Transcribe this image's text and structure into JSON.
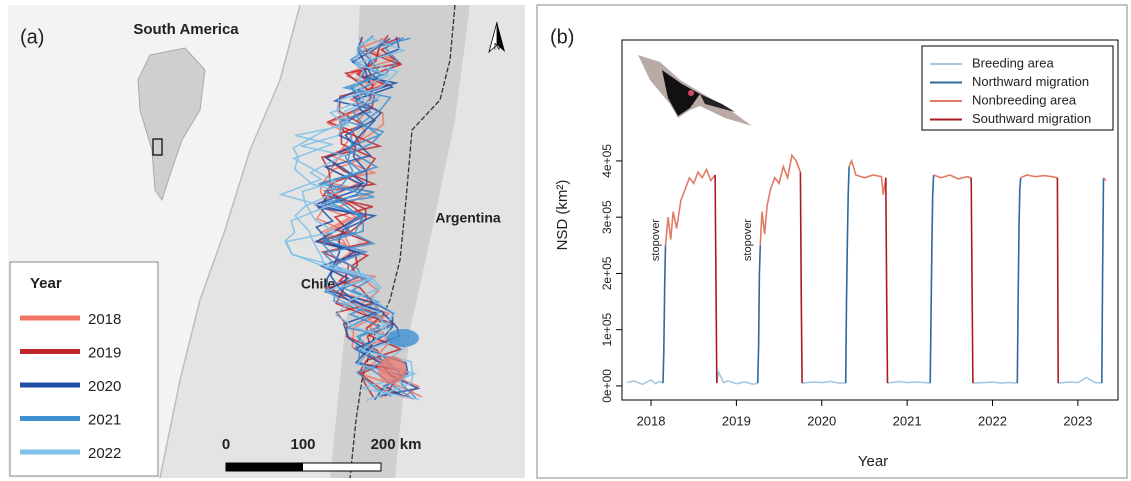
{
  "map": {
    "panel_label": "(a)",
    "inset_label": "South America",
    "country_labels": [
      "Argentina",
      "Chile"
    ],
    "north_label": "N",
    "legend": {
      "title": "Year",
      "items": [
        {
          "name": "2018",
          "color": "#f07466"
        },
        {
          "name": "2019",
          "color": "#c0272d"
        },
        {
          "name": "2020",
          "color": "#1f4fa8"
        },
        {
          "name": "2021",
          "color": "#3f8fd0"
        },
        {
          "name": "2022",
          "color": "#7ec0e8"
        }
      ]
    },
    "scale_labels": [
      "0",
      "100",
      "200 km"
    ]
  },
  "chart_data": {
    "type": "line",
    "panel_label": "(b)",
    "x_label": "Year",
    "y_label": "NSD (km²)",
    "annotations": [
      "stopover",
      "stopover"
    ],
    "xlim": [
      2017.66,
      2023.47
    ],
    "xticks": [
      2018,
      2019,
      2020,
      2021,
      2022,
      2023
    ],
    "ylim": [
      -25000,
      615000
    ],
    "yticks": [
      {
        "value": 0,
        "label": "0e+00"
      },
      {
        "value": 100000,
        "label": "1e+05"
      },
      {
        "value": 200000,
        "label": "2e+05"
      },
      {
        "value": 300000,
        "label": "3e+05"
      },
      {
        "value": 400000,
        "label": "4e+05"
      }
    ],
    "legend": "top-right",
    "series": [
      {
        "name": "Breeding area",
        "color": "#a6c8e3",
        "x": [
          2017.72,
          2017.8,
          2017.9,
          2018.0,
          2018.05,
          2018.1,
          2018.14,
          null,
          2018.77,
          2018.79,
          2018.85,
          2018.9,
          2019.0,
          2019.1,
          2019.2,
          2019.25,
          null,
          2019.77,
          2019.9,
          2020.0,
          2020.1,
          2020.2,
          2020.28,
          null,
          2020.77,
          2020.9,
          2021.0,
          2021.1,
          2021.2,
          2021.27,
          null,
          2021.77,
          2021.9,
          2022.0,
          2022.1,
          2022.2,
          2022.29,
          null,
          2022.77,
          2022.9,
          2023.0,
          2023.1,
          2023.2,
          2023.28
        ],
        "values": [
          6000,
          9000,
          3000,
          11000,
          4000,
          8000,
          5000,
          null,
          5000,
          25000,
          6000,
          9000,
          4000,
          7000,
          3000,
          5000,
          null,
          5000,
          7000,
          6000,
          8000,
          5000,
          5000,
          null,
          5000,
          8000,
          6000,
          7000,
          6000,
          5000,
          null,
          5000,
          6000,
          7000,
          5000,
          6000,
          5000,
          null,
          5000,
          7000,
          6000,
          15000,
          6000,
          5000
        ]
      },
      {
        "name": "Northward migration",
        "color": "#2c6aa0",
        "x": [
          2018.14,
          2018.15,
          2018.16,
          2018.17,
          null,
          2019.25,
          2019.26,
          2019.27,
          2019.28,
          null,
          2020.28,
          2020.29,
          2020.3,
          2020.31,
          2020.32,
          null,
          2021.27,
          2021.28,
          2021.29,
          2021.3,
          2021.31,
          null,
          2022.29,
          2022.3,
          2022.31,
          2022.32,
          2022.33,
          null,
          2023.28,
          2023.29,
          2023.3
        ],
        "values": [
          5000,
          60000,
          180000,
          250000,
          null,
          5000,
          70000,
          200000,
          250000,
          null,
          5000,
          150000,
          260000,
          340000,
          390000,
          null,
          5000,
          120000,
          250000,
          340000,
          375000,
          null,
          5000,
          150000,
          280000,
          350000,
          370000,
          null,
          5000,
          200000,
          370000
        ]
      },
      {
        "name": "Nonbreeding area",
        "color": "#e07b66",
        "x": [
          2018.17,
          2018.2,
          2018.23,
          2018.26,
          2018.3,
          2018.35,
          2018.4,
          2018.45,
          2018.5,
          2018.55,
          2018.6,
          2018.65,
          2018.7,
          2018.75,
          null,
          2019.28,
          2019.3,
          2019.33,
          2019.36,
          2019.4,
          2019.45,
          2019.5,
          2019.55,
          2019.6,
          2019.65,
          2019.7,
          2019.75,
          null,
          2020.32,
          2020.35,
          2020.4,
          2020.5,
          2020.6,
          2020.7,
          2020.72,
          2020.75,
          null,
          2021.31,
          2021.4,
          2021.5,
          2021.6,
          2021.7,
          2021.75,
          null,
          2022.33,
          2022.4,
          2022.5,
          2022.6,
          2022.7,
          2022.76,
          null,
          2023.3,
          2023.33
        ],
        "values": [
          250000,
          300000,
          260000,
          310000,
          280000,
          330000,
          350000,
          370000,
          360000,
          380000,
          370000,
          385000,
          365000,
          375000,
          null,
          250000,
          310000,
          270000,
          320000,
          350000,
          370000,
          360000,
          390000,
          370000,
          410000,
          400000,
          380000,
          null,
          390000,
          400000,
          375000,
          370000,
          375000,
          372000,
          340000,
          370000,
          null,
          375000,
          370000,
          375000,
          368000,
          372000,
          370000,
          null,
          370000,
          375000,
          372000,
          374000,
          372000,
          370000,
          null,
          370000,
          365000
        ]
      },
      {
        "name": "Southward migration",
        "color": "#a81c22",
        "x": [
          2018.75,
          2018.76,
          2018.77,
          null,
          2019.75,
          2019.76,
          2019.77,
          null,
          2020.75,
          2020.76,
          2020.77,
          null,
          2021.75,
          2021.76,
          2021.77,
          null,
          2022.76,
          2022.765,
          2022.77
        ],
        "values": [
          375000,
          200000,
          5000,
          null,
          380000,
          150000,
          5000,
          null,
          370000,
          180000,
          5000,
          null,
          370000,
          190000,
          5000,
          null,
          370000,
          180000,
          5000
        ]
      }
    ]
  }
}
